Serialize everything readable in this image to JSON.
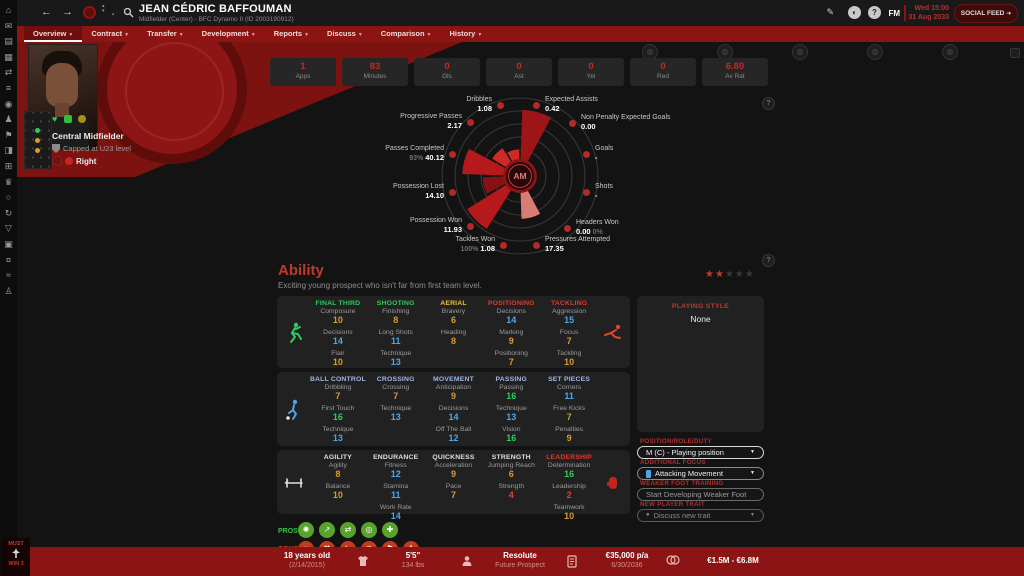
{
  "window": {
    "title": "JEAN CÉDRIC BAFFOUMAN",
    "subtitle": "Midfielder (Center) - BFC Dynamo II (ID 2003190912)",
    "datetime_line1": "Wed 15:00",
    "datetime_line2": "31 Aug 2033",
    "social_feed_label": "SOCIAL FEED",
    "fm_logo": "FM"
  },
  "nav": {
    "tabs": [
      {
        "label": "Overview"
      },
      {
        "label": "Contract"
      },
      {
        "label": "Transfer"
      },
      {
        "label": "Development"
      },
      {
        "label": "Reports"
      },
      {
        "label": "Discuss"
      },
      {
        "label": "Comparison"
      },
      {
        "label": "History"
      }
    ]
  },
  "sidebar": {
    "icons": [
      {
        "name": "home-icon",
        "glyph": "⌂"
      },
      {
        "name": "inbox-icon",
        "glyph": "✉"
      },
      {
        "name": "squad-icon",
        "glyph": "▤"
      },
      {
        "name": "tactics-icon",
        "glyph": "▦"
      },
      {
        "name": "transfers-icon",
        "glyph": "⇄"
      },
      {
        "name": "schedule-icon",
        "glyph": "≡"
      },
      {
        "name": "club-icon",
        "glyph": "◉"
      },
      {
        "name": "staff-icon",
        "glyph": "♟"
      },
      {
        "name": "training-icon",
        "glyph": "⚑"
      },
      {
        "name": "media-icon",
        "glyph": "◨"
      },
      {
        "name": "calendar-icon",
        "glyph": "⊞"
      },
      {
        "name": "competitions-icon",
        "glyph": "♛"
      },
      {
        "name": "search-icon",
        "glyph": "○"
      },
      {
        "name": "sync-icon",
        "glyph": "↻"
      },
      {
        "name": "nation-icon",
        "glyph": "▽"
      },
      {
        "name": "job-icon",
        "glyph": "▣"
      },
      {
        "name": "finances-icon",
        "glyph": "¤"
      },
      {
        "name": "stats-icon",
        "glyph": "≈"
      },
      {
        "name": "dev-centre-icon",
        "glyph": "♙"
      }
    ]
  },
  "player": {
    "position": "Central Midfielder",
    "caps": "Capped at U23 level",
    "foot": "Right"
  },
  "quick_stats": [
    {
      "label": "Apps",
      "value": "1"
    },
    {
      "label": "Minutes",
      "value": "83"
    },
    {
      "label": "Gls",
      "value": "0"
    },
    {
      "label": "Ast",
      "value": "0"
    },
    {
      "label": "Yel",
      "value": "0"
    },
    {
      "label": "Red",
      "value": "0"
    },
    {
      "label": "Av Rat",
      "value": "6.80"
    }
  ],
  "chart_data": {
    "type": "polar_bar",
    "center_label": "AM",
    "rings": 6,
    "sectors": [
      {
        "label": "Expected Assists",
        "value": "0.42",
        "pct": "",
        "fraction": 0.85,
        "color": "#9e1517"
      },
      {
        "label": "Non Penalty Expected Goals",
        "value": "0.00",
        "pct": "",
        "fraction": 0,
        "color": "#9e1517"
      },
      {
        "label": "Goals",
        "value": "-",
        "pct": "",
        "fraction": 0,
        "color": "#9e1517"
      },
      {
        "label": "Shots",
        "value": "-",
        "pct": "",
        "fraction": 0,
        "color": "#9e1517"
      },
      {
        "label": "Headers Won",
        "value": "0.00",
        "pct": "0%",
        "fraction": 0,
        "color": "#d97c74"
      },
      {
        "label": "Pressures Attempted",
        "value": "17.35",
        "pct": "",
        "fraction": 0.55,
        "color": "#d97c74"
      },
      {
        "label": "Tackles Won",
        "value": "1.08",
        "pct": "100%",
        "fraction": 0.17,
        "color": "#d97c74"
      },
      {
        "label": "Possession Won",
        "value": "11.93",
        "pct": "",
        "fraction": 0.8,
        "color": "#b5191c"
      },
      {
        "label": "Possession Lost",
        "value": "14.10",
        "pct": "",
        "fraction": 0.48,
        "color": "#871114"
      },
      {
        "label": "Passes Completed",
        "value": "40.12",
        "pct": "93%",
        "fraction": 0.74,
        "color": "#b5191c"
      },
      {
        "label": "Progressive Passes",
        "value": "2.17",
        "pct": "",
        "fraction": 0.42,
        "color": "#cf2b26"
      },
      {
        "label": "Dribbles",
        "value": "1.08",
        "pct": "",
        "fraction": 0.34,
        "color": "#cf2b26"
      }
    ]
  },
  "ability": {
    "title": "Ability",
    "subtitle": "Exciting young prospect who isn't far from first team level.",
    "stars": {
      "filled": 2,
      "total": 5
    },
    "playing_style": {
      "header": "PLAYING STYLE",
      "value": "None"
    },
    "rows": [
      {
        "groups": [
          {
            "header": "FINAL THIRD",
            "color": "#2ecc5e",
            "attrs": [
              {
                "n": "Composure",
                "v": "10",
                "c": "#d99b2e"
              },
              {
                "n": "Decisions",
                "v": "14",
                "c": "#4da5e8"
              },
              {
                "n": "Flair",
                "v": "10",
                "c": "#d99b2e"
              }
            ]
          },
          {
            "header": "SHOOTING",
            "color": "#2ecc5e",
            "attrs": [
              {
                "n": "Finishing",
                "v": "8",
                "c": "#d99b2e"
              },
              {
                "n": "Long Shots",
                "v": "11",
                "c": "#4da5e8"
              },
              {
                "n": "Technique",
                "v": "13",
                "c": "#4da5e8"
              }
            ]
          },
          {
            "header": "AERIAL",
            "color": "#edc13c",
            "attrs": [
              {
                "n": "Bravery",
                "v": "6",
                "c": "#d99b2e"
              },
              {
                "n": "Heading",
                "v": "8",
                "c": "#d99b2e"
              }
            ]
          },
          {
            "header": "POSITIONING",
            "color": "#e0392e",
            "attrs": [
              {
                "n": "Decisions",
                "v": "14",
                "c": "#4da5e8"
              },
              {
                "n": "Marking",
                "v": "9",
                "c": "#d99b2e"
              },
              {
                "n": "Positioning",
                "v": "7",
                "c": "#d99b2e"
              }
            ]
          },
          {
            "header": "TACKLING",
            "color": "#e0392e",
            "attrs": [
              {
                "n": "Aggression",
                "v": "15",
                "c": "#4da5e8"
              },
              {
                "n": "Focus",
                "v": "7",
                "c": "#d99b2e"
              },
              {
                "n": "Tackling",
                "v": "10",
                "c": "#d99b2e"
              }
            ]
          }
        ]
      },
      {
        "groups": [
          {
            "header": "BALL CONTROL",
            "color": "#9fb6e8",
            "attrs": [
              {
                "n": "Dribbling",
                "v": "7",
                "c": "#d99b2e"
              },
              {
                "n": "First Touch",
                "v": "16",
                "c": "#2ecc5e"
              },
              {
                "n": "Technique",
                "v": "13",
                "c": "#4da5e8"
              }
            ]
          },
          {
            "header": "CROSSING",
            "color": "#9fb6e8",
            "attrs": [
              {
                "n": "Crossing",
                "v": "7",
                "c": "#d99b2e"
              },
              {
                "n": "Technique",
                "v": "13",
                "c": "#4da5e8"
              }
            ]
          },
          {
            "header": "MOVEMENT",
            "color": "#9fb6e8",
            "attrs": [
              {
                "n": "Anticipation",
                "v": "9",
                "c": "#d99b2e"
              },
              {
                "n": "Decisions",
                "v": "14",
                "c": "#4da5e8"
              },
              {
                "n": "Off The Ball",
                "v": "12",
                "c": "#4da5e8"
              }
            ]
          },
          {
            "header": "PASSING",
            "color": "#9fb6e8",
            "attrs": [
              {
                "n": "Passing",
                "v": "16",
                "c": "#2ecc5e"
              },
              {
                "n": "Technique",
                "v": "13",
                "c": "#4da5e8"
              },
              {
                "n": "Vision",
                "v": "16",
                "c": "#2ecc5e"
              }
            ]
          },
          {
            "header": "SET PIECES",
            "color": "#9fb6e8",
            "attrs": [
              {
                "n": "Corners",
                "v": "11",
                "c": "#4da5e8"
              },
              {
                "n": "Free Kicks",
                "v": "7",
                "c": "#d99b2e"
              },
              {
                "n": "Penalties",
                "v": "9",
                "c": "#d99b2e"
              }
            ]
          }
        ]
      },
      {
        "groups": [
          {
            "header": "AGILITY",
            "color": "#e0e0e0",
            "attrs": [
              {
                "n": "Agility",
                "v": "8",
                "c": "#d99b2e"
              },
              {
                "n": "Balance",
                "v": "10",
                "c": "#d99b2e"
              }
            ]
          },
          {
            "header": "ENDURANCE",
            "color": "#e0e0e0",
            "attrs": [
              {
                "n": "Fitness",
                "v": "12",
                "c": "#4da5e8"
              },
              {
                "n": "Stamina",
                "v": "11",
                "c": "#4da5e8"
              },
              {
                "n": "Work Rate",
                "v": "14",
                "c": "#4da5e8"
              }
            ]
          },
          {
            "header": "QUICKNESS",
            "color": "#e0e0e0",
            "attrs": [
              {
                "n": "Acceleration",
                "v": "9",
                "c": "#d99b2e"
              },
              {
                "n": "Pace",
                "v": "7",
                "c": "#d99b2e"
              }
            ]
          },
          {
            "header": "STRENGTH",
            "color": "#e0e0e0",
            "attrs": [
              {
                "n": "Jumping Reach",
                "v": "6",
                "c": "#d99b2e"
              },
              {
                "n": "Strength",
                "v": "4",
                "c": "#e0452e"
              }
            ]
          },
          {
            "header": "LEADERSHIP",
            "color": "#e0392e",
            "attrs": [
              {
                "n": "Determination",
                "v": "16",
                "c": "#2ecc5e"
              },
              {
                "n": "Leadership",
                "v": "2",
                "c": "#e0452e"
              },
              {
                "n": "Teamwork",
                "v": "10",
                "c": "#d99b2e"
              }
            ]
          }
        ]
      }
    ]
  },
  "training": {
    "position_label": "POSITION/ROLE/DUTY",
    "position_value": "M (C) - Playing position",
    "focus_label": "ADDITIONAL FOCUS",
    "focus_value": "Attacking Movement",
    "weaker_foot_label": "WEAKER FOOT TRAINING",
    "weaker_foot_value": "Start Developing Weaker Foot",
    "trait_label": "NEW PLAYER TRAIT",
    "trait_value": "Discuss new trait"
  },
  "pros_cons": {
    "pros_label": "PROS",
    "cons_label": "CONS",
    "pros_icons": [
      {
        "name": "pros-idea-icon",
        "glyph": "✺"
      },
      {
        "name": "pros-growth-icon",
        "glyph": "↗"
      },
      {
        "name": "pros-versatility-icon",
        "glyph": "⇄"
      },
      {
        "name": "pros-focus-icon",
        "glyph": "◎"
      },
      {
        "name": "pros-fitness-icon",
        "glyph": "✚"
      }
    ],
    "cons_icons": [
      {
        "name": "cons-weakfoot-icon",
        "glyph": "▾"
      },
      {
        "name": "cons-age-icon",
        "glyph": "✖"
      },
      {
        "name": "cons-strength-icon",
        "glyph": "⇆"
      },
      {
        "name": "cons-aerial-icon",
        "glyph": "◉"
      },
      {
        "name": "cons-leadership-icon",
        "glyph": "⚑"
      },
      {
        "name": "cons-experience-icon",
        "glyph": "♟"
      }
    ]
  },
  "bottom_bar": {
    "age": "18 years old",
    "dob": "(2/14/2015)",
    "height": "5'5\"",
    "weight": "134 lbs",
    "personality": "Resolute",
    "status": "Future Prospect",
    "wage": "€35,000 p/a",
    "contract_end": "6/30/2036",
    "value": "€1.5M - €6.8M"
  },
  "poster": {
    "line1": "MUST",
    "line2": "WIN 3"
  },
  "palette": {
    "fm_red": "#8c1412",
    "accent_red": "#c0392b",
    "attr_green": "#2ecc5e",
    "attr_blue": "#4da5e8",
    "attr_orange": "#d99b2e",
    "attr_red": "#e0452e"
  }
}
